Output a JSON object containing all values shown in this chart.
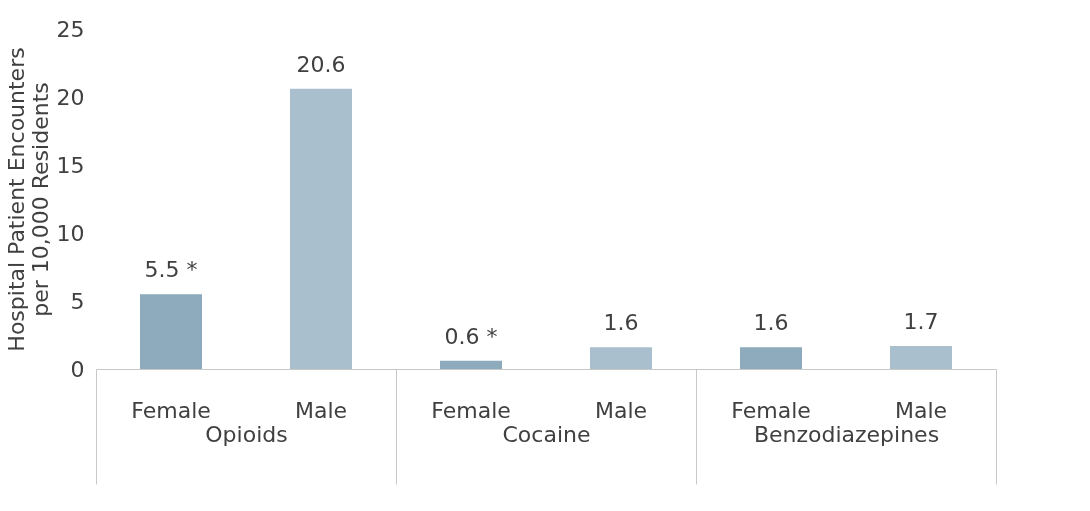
{
  "chart_data": {
    "type": "bar",
    "ylabel": "Hospital Patient Encounters\nper 10,000 Residents",
    "categories": [
      "Opioids",
      "Cocaine",
      "Benzodiazepines"
    ],
    "series": [
      {
        "name": "Female",
        "color": "#8eaabd",
        "values": [
          5.5,
          0.6,
          1.6
        ],
        "value_labels": [
          "5.5 *",
          "0.6 *",
          "1.6"
        ]
      },
      {
        "name": "Male",
        "color": "#a9bfce",
        "values": [
          20.6,
          1.6,
          1.7
        ],
        "value_labels": [
          "20.6",
          "1.6",
          "1.7"
        ]
      }
    ],
    "ylim": [
      0,
      25
    ],
    "yticks": [
      0,
      5,
      10,
      15,
      20,
      25
    ],
    "grid": false
  }
}
